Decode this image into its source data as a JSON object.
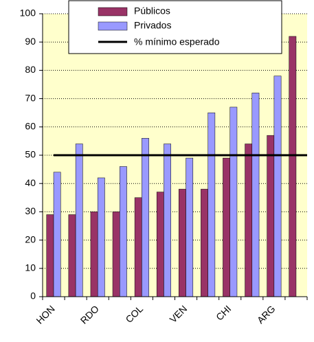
{
  "chart_data": {
    "type": "bar",
    "categories": [
      "HON",
      null,
      "RDO",
      null,
      "COL",
      null,
      "VEN",
      null,
      "CHI",
      null,
      "ARG",
      null
    ],
    "series": [
      {
        "name": "Públicos",
        "color": "#993366",
        "values": [
          29,
          29,
          30,
          30,
          35,
          37,
          38,
          38,
          49,
          54,
          57,
          92
        ]
      },
      {
        "name": "Privados",
        "color": "#9999ff",
        "values": [
          44,
          54,
          42,
          46,
          56,
          54,
          49,
          65,
          67,
          72,
          78,
          null
        ]
      }
    ],
    "reference_line": {
      "name": "% mínimo esperado",
      "value": 50,
      "color": "#000000"
    },
    "ylim": [
      0,
      100
    ],
    "yticks": [
      0,
      10,
      20,
      30,
      40,
      50,
      60,
      70,
      80,
      90,
      100
    ],
    "grid": true,
    "plot_background": "#ffffcc",
    "legend": "top"
  }
}
